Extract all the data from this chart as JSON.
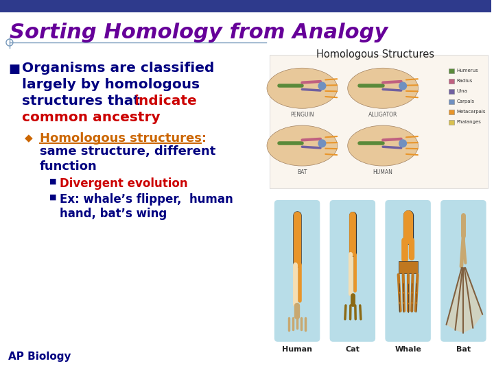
{
  "title": "Sorting Homology from Analogy",
  "title_color": "#660099",
  "title_fontsize": 22,
  "background_color": "#ffffff",
  "top_bar_color": "#2e3a8c",
  "bullet1_color": "#000080",
  "indicate_color": "#cc0000",
  "ancestry_color": "#cc0000",
  "sub_bullet_color": "#cc6600",
  "sub_text_color": "#000080",
  "sub_sub_bullet1_text": "Divergent evolution",
  "sub_sub_bullet1_color": "#cc0000",
  "sub_sub_bullet2_color": "#000080",
  "footer_text": "AP Biology",
  "footer_color": "#000080",
  "footer_fontsize": 11,
  "divider_color": "#7799bb",
  "homologous_label": "Homologous Structures",
  "homologous_label_color": "#222222",
  "bone_orange": "#e8952a",
  "bone_light": "#f5deb3",
  "bone_tan": "#c8a870",
  "skin_tan": "#e8c89a",
  "teal_bg": "#b8dde8",
  "green_bone": "#5a8a3a",
  "pink_bone": "#c06080",
  "purple_bone": "#7060a0",
  "blue_bone": "#7090c0",
  "yellow_bone": "#d8c050"
}
